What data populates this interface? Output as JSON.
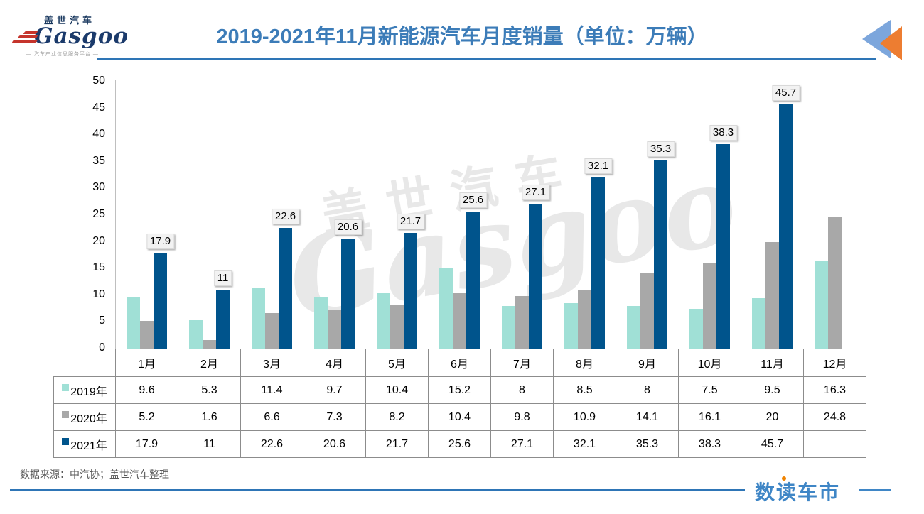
{
  "header": {
    "logo": {
      "brand_en": "Gasgoo",
      "brand_cn": "盖世汽车",
      "tagline": "— 汽车产业信息服务平台 —"
    },
    "title": "2019-2021年11月新能源汽车月度销量（单位：万辆）",
    "title_color": "#3c7cb8",
    "back_icon_colors": {
      "blue": "#7ca6dc",
      "orange": "#ed7d31"
    }
  },
  "chart_data": {
    "type": "bar",
    "title": "2019-2021年11月新能源汽车月度销量",
    "unit_label": "万辆",
    "categories": [
      "1月",
      "2月",
      "3月",
      "4月",
      "5月",
      "6月",
      "7月",
      "8月",
      "9月",
      "10月",
      "11月",
      "12月"
    ],
    "series": [
      {
        "name": "2019年",
        "color": "#a0e0d6",
        "values": [
          9.6,
          5.3,
          11.4,
          9.7,
          10.4,
          15.2,
          8,
          8.5,
          8,
          7.5,
          9.5,
          16.3
        ]
      },
      {
        "name": "2020年",
        "color": "#a8a8a8",
        "values": [
          5.2,
          1.6,
          6.6,
          7.3,
          8.2,
          10.4,
          9.8,
          10.9,
          14.1,
          16.1,
          20,
          24.8
        ]
      },
      {
        "name": "2021年",
        "color": "#00548c",
        "values": [
          17.9,
          11,
          22.6,
          20.6,
          21.7,
          25.6,
          27.1,
          32.1,
          35.3,
          38.3,
          45.7,
          null
        ],
        "data_labels": true
      }
    ],
    "ylim": [
      0,
      50
    ],
    "ytick_step": 5,
    "gridlines": false,
    "legend_position": "table-row-headers",
    "watermark": {
      "cn": "盖世汽车",
      "en": "Gasgoo"
    }
  },
  "footer": {
    "source": "数据来源：中汽协；盖世汽车整理",
    "logo": "数读车市"
  }
}
